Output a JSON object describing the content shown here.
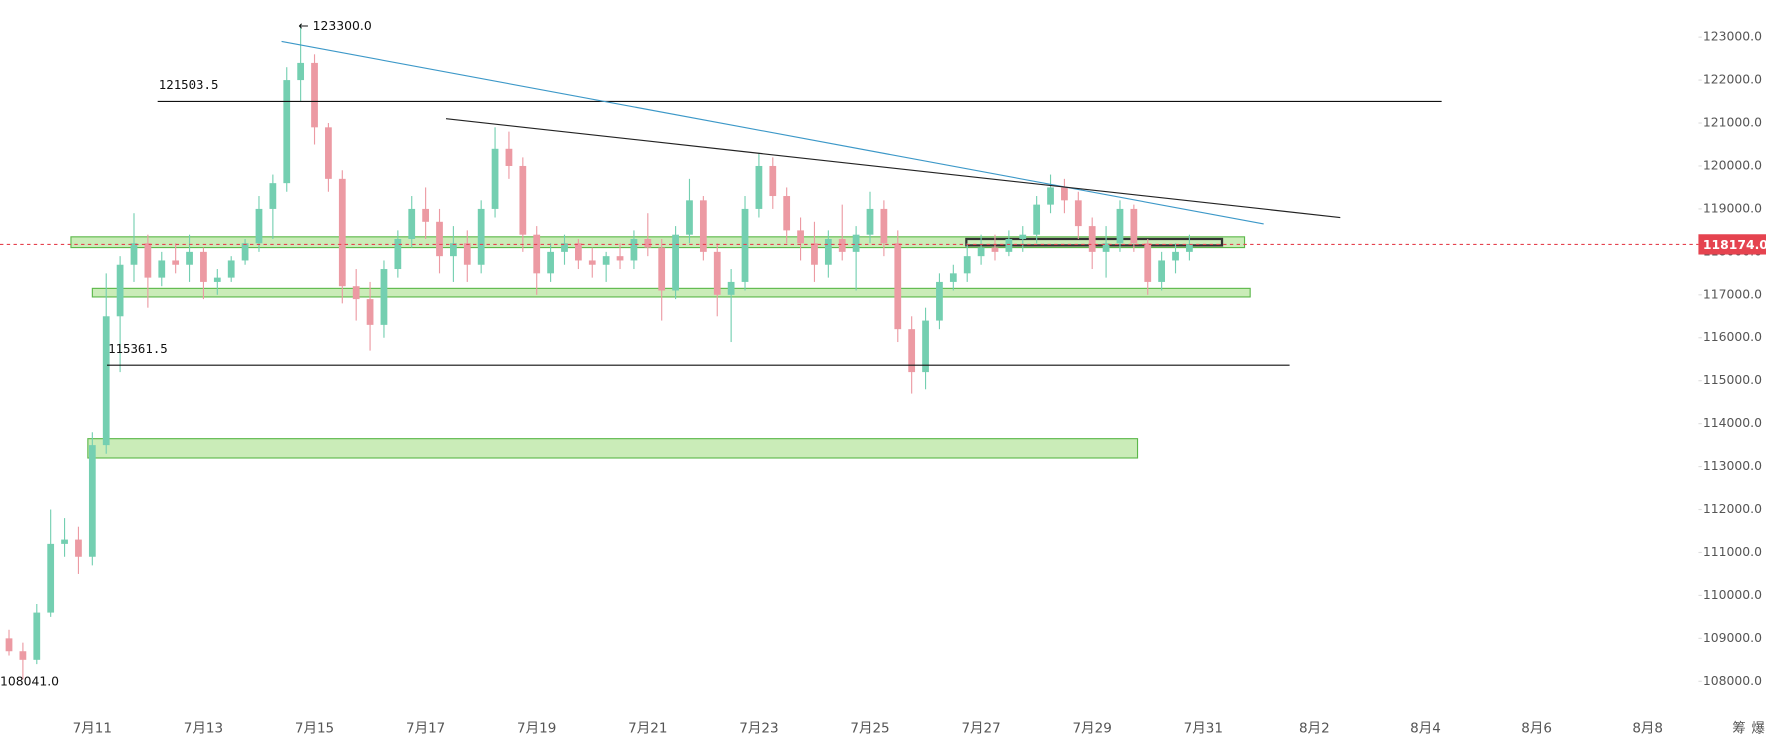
{
  "chart_data": {
    "type": "candlestick",
    "categories": [
      null,
      null,
      null,
      null,
      null,
      null,
      "7月11",
      null,
      null,
      null,
      null,
      null,
      null,
      null,
      "7月13",
      null,
      null,
      null,
      null,
      null,
      null,
      null,
      "7月15",
      null,
      null,
      null,
      null,
      null,
      null,
      null,
      "7月17",
      null,
      null,
      null,
      null,
      null,
      null,
      null,
      "7月19",
      null,
      null,
      null,
      null,
      null,
      null,
      null,
      "7月21",
      null,
      null,
      null,
      null,
      null,
      null,
      null,
      "7月23",
      null,
      null,
      null,
      null,
      null,
      null,
      null,
      "7月25",
      null,
      null,
      null,
      null,
      null,
      null,
      null,
      "7月27",
      null,
      null,
      null,
      null,
      null,
      null,
      null,
      "7月29",
      null,
      null,
      null,
      null,
      null,
      null,
      null,
      "7月31",
      null,
      null,
      null,
      null,
      null,
      null,
      null,
      "8月2",
      null,
      null,
      null,
      null,
      null,
      null,
      null,
      "8月4",
      null,
      null,
      null,
      null,
      null,
      null,
      null,
      "8月6",
      null,
      null,
      null,
      null,
      null,
      null,
      null,
      "8月8"
    ],
    "open": [
      109000,
      108700,
      108500,
      109600,
      111200,
      111300,
      110900,
      113500,
      116500,
      117700,
      118200,
      117400,
      117800,
      117700,
      118000,
      117300,
      117400,
      117800,
      118200,
      119000,
      119600,
      122000,
      122400,
      120900,
      119700,
      117200,
      116900,
      116300,
      117600,
      118300,
      119000,
      118700,
      117900,
      118200,
      117700,
      119000,
      120400,
      120000,
      118400,
      117500,
      118000,
      118200,
      117800,
      117700,
      117900,
      117800,
      118300,
      118100,
      117100,
      118400,
      119200,
      118000,
      117000,
      117300,
      119000,
      120000,
      119300,
      118500,
      118200,
      117700,
      118300,
      118000,
      118400,
      119000,
      118200,
      116200,
      115200,
      116400,
      117300,
      117500,
      117900,
      118100,
      118000,
      118300,
      118400,
      119100,
      119500,
      119200,
      118600,
      118000,
      118200,
      119000,
      118200,
      117300,
      117800,
      118000,
      null,
      null,
      null,
      null,
      null,
      null,
      null,
      null,
      null,
      null,
      null,
      null,
      null,
      null,
      null,
      null,
      null,
      null,
      null,
      null,
      null,
      null,
      null,
      null,
      null,
      null,
      null,
      null,
      null,
      null,
      null,
      null,
      null
    ],
    "high": [
      109200,
      108900,
      109800,
      112000,
      111800,
      111600,
      113800,
      117500,
      117900,
      118900,
      118400,
      118000,
      118200,
      118400,
      118100,
      117600,
      117900,
      118300,
      119300,
      119800,
      122300,
      123300,
      122600,
      121000,
      119900,
      117600,
      117300,
      117800,
      118500,
      119300,
      119500,
      119000,
      118600,
      118500,
      119200,
      120900,
      120800,
      120200,
      118600,
      118200,
      118400,
      118300,
      118100,
      118000,
      118200,
      118500,
      118900,
      118300,
      118600,
      119700,
      119300,
      118200,
      117600,
      119300,
      120300,
      120200,
      119500,
      118800,
      118700,
      118500,
      119100,
      118600,
      119400,
      119200,
      118500,
      116500,
      116700,
      117500,
      117700,
      118200,
      118400,
      118400,
      118500,
      118600,
      119300,
      119800,
      119700,
      119400,
      118800,
      118600,
      119200,
      119100,
      118300,
      118000,
      118200,
      118400,
      null,
      null,
      null,
      null,
      null,
      null,
      null,
      null,
      null,
      null,
      null,
      null,
      null,
      null,
      null,
      null,
      null,
      null,
      null,
      null,
      null,
      null,
      null,
      null,
      null,
      null,
      null,
      null,
      null,
      null,
      null,
      null,
      null
    ],
    "low": [
      108600,
      108041,
      108400,
      109500,
      110900,
      110500,
      110700,
      113300,
      115200,
      117300,
      116700,
      117200,
      117500,
      117300,
      116900,
      117000,
      117300,
      117700,
      118000,
      118300,
      119400,
      121500,
      120500,
      119400,
      116800,
      116400,
      115700,
      116000,
      117400,
      118100,
      118300,
      117500,
      117300,
      117300,
      117500,
      118800,
      119700,
      118000,
      117000,
      117300,
      117700,
      117600,
      117400,
      117300,
      117600,
      117600,
      117900,
      116400,
      116900,
      118200,
      117800,
      116500,
      115900,
      117100,
      118800,
      119000,
      118200,
      117800,
      117300,
      117400,
      117800,
      117100,
      118200,
      117900,
      115900,
      114700,
      114800,
      116200,
      117100,
      117300,
      117700,
      117800,
      117900,
      118000,
      118200,
      118900,
      118900,
      118300,
      117600,
      117400,
      118000,
      118000,
      117000,
      117100,
      117500,
      117800,
      null,
      null,
      null,
      null,
      null,
      null,
      null,
      null,
      null,
      null,
      null,
      null,
      null,
      null,
      null,
      null,
      null,
      null,
      null,
      null,
      null,
      null,
      null,
      null,
      null,
      null,
      null,
      null,
      null,
      null,
      null,
      null,
      null
    ],
    "close": [
      108700,
      108500,
      109600,
      111200,
      111300,
      110900,
      113500,
      116500,
      117700,
      118200,
      117400,
      117800,
      117700,
      118000,
      117300,
      117400,
      117800,
      118200,
      119000,
      119600,
      122000,
      122400,
      120900,
      119700,
      117200,
      116900,
      116300,
      117600,
      118300,
      119000,
      118700,
      117900,
      118200,
      117700,
      119000,
      120400,
      120000,
      118400,
      117500,
      118000,
      118200,
      117800,
      117700,
      117900,
      117800,
      118300,
      118100,
      117100,
      118400,
      119200,
      118000,
      117000,
      117300,
      119000,
      120000,
      119300,
      118500,
      118200,
      117700,
      118300,
      118000,
      118400,
      119000,
      118200,
      116200,
      115200,
      116400,
      117300,
      117500,
      117900,
      118100,
      118000,
      118300,
      118400,
      119100,
      119500,
      119200,
      118600,
      118000,
      118200,
      119000,
      118200,
      117300,
      117800,
      118000,
      118174,
      null,
      null,
      null,
      null,
      null,
      null,
      null,
      null,
      null,
      null,
      null,
      null,
      null,
      null,
      null,
      null,
      null,
      null,
      null,
      null,
      null,
      null,
      null,
      null,
      null,
      null,
      null,
      null,
      null,
      null,
      null,
      null,
      null
    ],
    "up_color": "#74cfb1",
    "down_color": "#ec9aa3",
    "ylim": [
      107344,
      123865
    ],
    "yticks": [
      {
        "value": 108000,
        "label": "108000.0"
      },
      {
        "value": 109000,
        "label": "109000.0"
      },
      {
        "value": 110000,
        "label": "110000.0"
      },
      {
        "value": 111000,
        "label": "111000.0"
      },
      {
        "value": 112000,
        "label": "112000.0"
      },
      {
        "value": 113000,
        "label": "113000.0"
      },
      {
        "value": 114000,
        "label": "114000.0"
      },
      {
        "value": 115000,
        "label": "115000.0"
      },
      {
        "value": 116000,
        "label": "116000.0"
      },
      {
        "value": 117000,
        "label": "117000.0"
      },
      {
        "value": 118000,
        "label": "118000.0"
      },
      {
        "value": 119000,
        "label": "119000.0"
      },
      {
        "value": 120000,
        "label": "120000.0"
      },
      {
        "value": 121000,
        "label": "121000.0"
      },
      {
        "value": 122000,
        "label": "122000.0"
      },
      {
        "value": 123000,
        "label": "123000.0"
      }
    ],
    "grid": false,
    "last_price": {
      "value": 118174,
      "label": "118174.0",
      "color": "#e5434f"
    },
    "high_marker": {
      "value": 123300,
      "label": "← 123300.0"
    },
    "low_marker": {
      "value": 108041,
      "label": "108041.0"
    },
    "hlines": [
      121503.5,
      115361.5
    ],
    "zones": [
      [
        118100,
        118350
      ],
      [
        116950,
        117150
      ],
      [
        113200,
        113650
      ],
      [
        118150,
        118300
      ]
    ],
    "zone_color": "#b8e6a0",
    "trendlines": [
      {
        "color": "#3c98c8",
        "values": [
          122900,
          118650
        ]
      },
      {
        "color": "#222222",
        "values": [
          121100,
          118800
        ]
      }
    ],
    "toolbar": [
      "筹",
      "爆"
    ]
  }
}
